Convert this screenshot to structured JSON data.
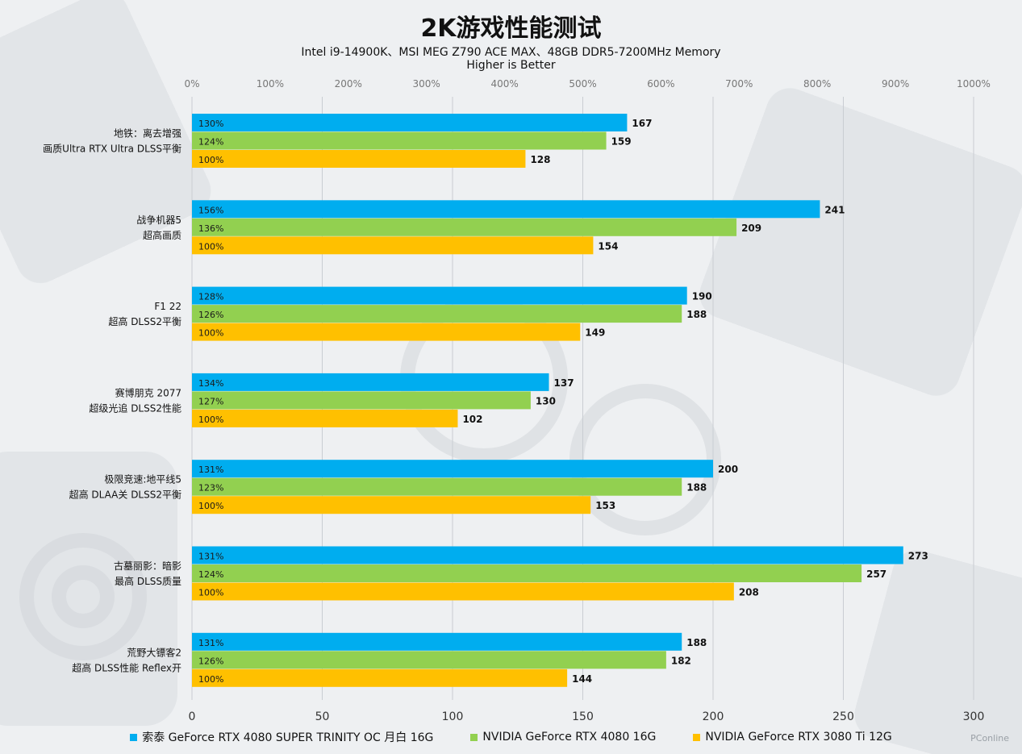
{
  "chart_data": {
    "type": "bar",
    "orientation": "horizontal",
    "title": "2K游戏性能测试",
    "subtitle_lines": [
      "Intel i9-14900K、MSI MEG Z790 ACE MAX、48GB DDR5-7200MHz Memory",
      "Higher is Better"
    ],
    "categories": [
      [
        "地铁：离去增强",
        "画质Ultra RTX Ultra DLSS平衡"
      ],
      [
        "战争机器5",
        "超高画质"
      ],
      [
        "F1 22",
        "超高 DLSS2平衡"
      ],
      [
        "赛博朋克 2077",
        "超级光追 DLSS2性能"
      ],
      [
        "极限竞速:地平线5",
        "超高 DLAA关 DLSS2平衡"
      ],
      [
        "古墓丽影：暗影",
        "最高 DLSS质量"
      ],
      [
        "荒野大镖客2",
        "超高 DLSS性能 Reflex开"
      ]
    ],
    "series": [
      {
        "name": "索泰 GeForce RTX 4080 SUPER TRINITY OC 月白 16G",
        "color": "#00adef",
        "values": [
          167,
          241,
          190,
          137,
          200,
          273,
          188
        ],
        "percent_labels": [
          "130%",
          "156%",
          "128%",
          "134%",
          "131%",
          "131%",
          "131%"
        ]
      },
      {
        "name": "NVIDIA GeForce RTX 4080 16G",
        "color": "#92d050",
        "values": [
          159,
          209,
          188,
          130,
          188,
          257,
          182
        ],
        "percent_labels": [
          "124%",
          "136%",
          "126%",
          "127%",
          "123%",
          "124%",
          "126%"
        ]
      },
      {
        "name": "NVIDIA GeForce RTX 3080 Ti 12G",
        "color": "#ffc000",
        "values": [
          128,
          154,
          149,
          102,
          153,
          208,
          144
        ],
        "percent_labels": [
          "100%",
          "100%",
          "100%",
          "100%",
          "100%",
          "100%",
          "100%"
        ]
      }
    ],
    "x_axis": {
      "range": [
        0,
        300
      ],
      "ticks": [
        "0",
        "50",
        "100",
        "150",
        "200",
        "250",
        "300"
      ]
    },
    "x2_axis": {
      "range": [
        0,
        1000
      ],
      "ticks": [
        "0%",
        "100%",
        "200%",
        "300%",
        "400%",
        "500%",
        "600%",
        "700%",
        "800%",
        "900%",
        "1000%"
      ]
    },
    "grid": true,
    "legend": "bottom"
  },
  "watermark": "PConline"
}
